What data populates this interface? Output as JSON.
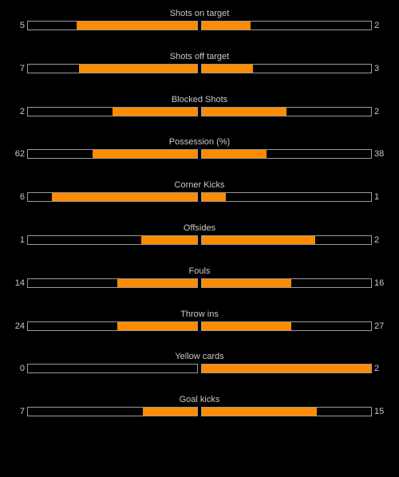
{
  "colors": {
    "background": "#000000",
    "bar_fill": "#ff8c00",
    "bar_border": "#9a9a9a",
    "text": "#c8c8c8"
  },
  "stats": [
    {
      "label": "Shots on target",
      "home": "5",
      "away": "2",
      "home_fill": 0.71,
      "away_fill": 0.29
    },
    {
      "label": "Shots off target",
      "home": "7",
      "away": "3",
      "home_fill": 0.7,
      "away_fill": 0.3
    },
    {
      "label": "Blocked Shots",
      "home": "2",
      "away": "2",
      "home_fill": 0.5,
      "away_fill": 0.5
    },
    {
      "label": "Possession (%)",
      "home": "62",
      "away": "38",
      "home_fill": 0.62,
      "away_fill": 0.38
    },
    {
      "label": "Corner Kicks",
      "home": "6",
      "away": "1",
      "home_fill": 0.86,
      "away_fill": 0.14
    },
    {
      "label": "Offsides",
      "home": "1",
      "away": "2",
      "home_fill": 0.33,
      "away_fill": 0.67
    },
    {
      "label": "Fouls",
      "home": "14",
      "away": "16",
      "home_fill": 0.47,
      "away_fill": 0.53
    },
    {
      "label": "Throw ins",
      "home": "24",
      "away": "27",
      "home_fill": 0.47,
      "away_fill": 0.53
    },
    {
      "label": "Yellow cards",
      "home": "0",
      "away": "2",
      "home_fill": 0.0,
      "away_fill": 1.0
    },
    {
      "label": "Goal kicks",
      "home": "7",
      "away": "15",
      "home_fill": 0.32,
      "away_fill": 0.68
    }
  ]
}
